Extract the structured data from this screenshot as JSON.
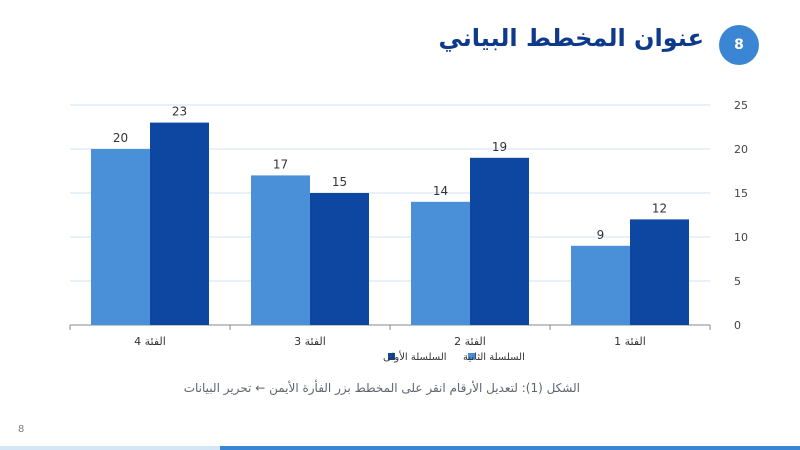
{
  "slide": {
    "number_badge": "8",
    "title": "عنوان المخطط البياني",
    "caption": "الشكل (1): لتعديل الأرقام انقر على المخطط بزر الفأرة الأيمن ← تحرير البيانات",
    "footer_number": "8"
  },
  "colors": {
    "title": "#0e3a8c",
    "badge": "#3a86d4",
    "series_light": "#4a90d9",
    "series_dark": "#0d47a1",
    "gridline": "#d3e3f0"
  },
  "chart_data": {
    "type": "bar",
    "categories": [
      "الفئة 1",
      "الفئة 2",
      "الفئة 3",
      "الفئة 4"
    ],
    "category_order": "right-to-left",
    "series": [
      {
        "name": "السلسلة الأولى",
        "values": [
          12,
          19,
          15,
          23
        ],
        "color": "#0d47a1"
      },
      {
        "name": "السلسلة الثانية",
        "values": [
          9,
          14,
          17,
          20
        ],
        "color": "#4a90d9"
      }
    ],
    "ylim": [
      0,
      25
    ],
    "yticks": [
      0,
      5,
      10,
      15,
      20,
      25
    ],
    "y_axis_side": "right",
    "grid": true,
    "data_labels": true,
    "legend": "bottom"
  }
}
